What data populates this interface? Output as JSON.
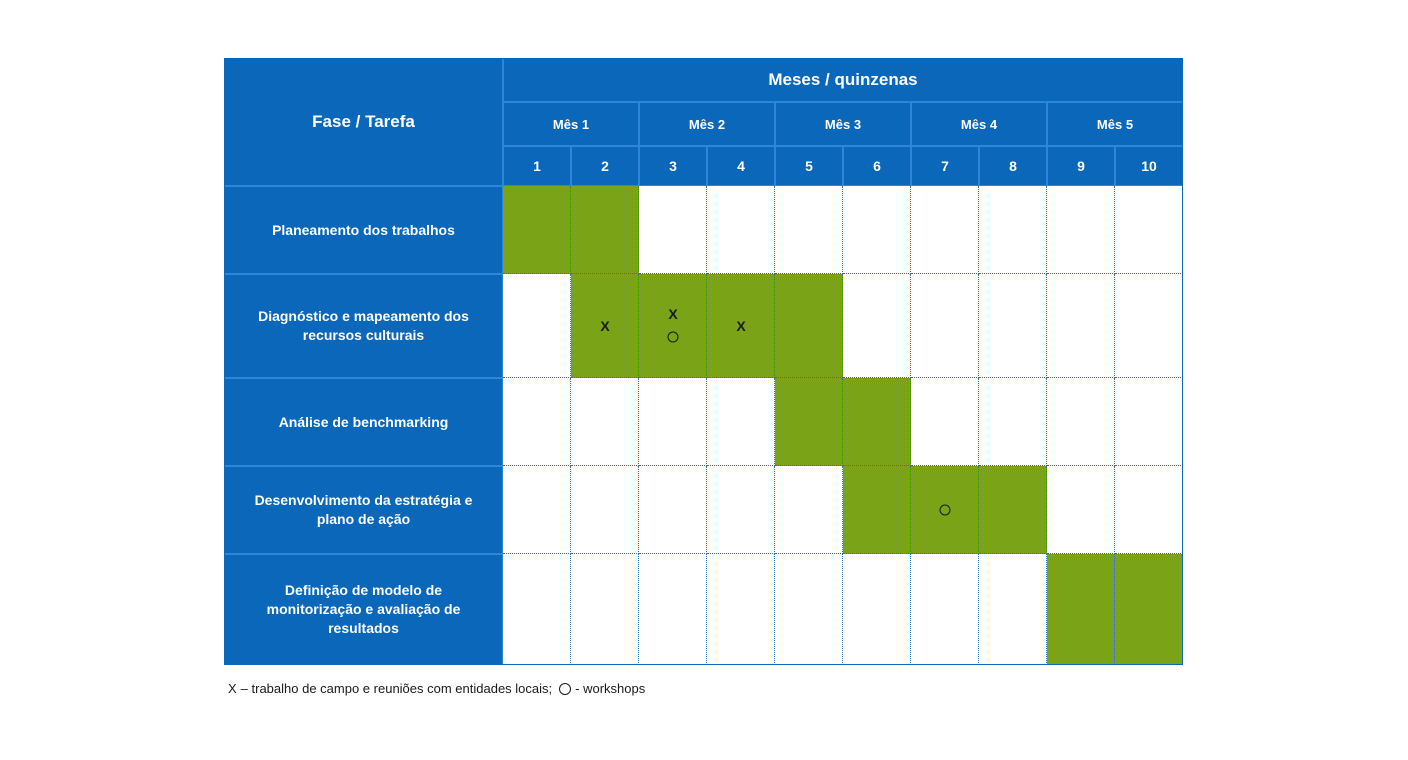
{
  "header": {
    "phase": "Fase / Tarefa",
    "period": "Meses / quinzenas",
    "months": [
      "Mês 1",
      "Mês 2",
      "Mês 3",
      "Mês 4",
      "Mês 5"
    ],
    "fortnights": [
      "1",
      "2",
      "3",
      "4",
      "5",
      "6",
      "7",
      "8",
      "9",
      "10"
    ]
  },
  "rows": [
    {
      "label": "Planeamento dos trabalhos",
      "active": [
        true,
        true,
        false,
        false,
        false,
        false,
        false,
        false,
        false,
        false
      ],
      "field_work": [],
      "workshop": []
    },
    {
      "label": "Diagnóstico e mapeamento dos recursos culturais",
      "active": [
        false,
        true,
        true,
        true,
        true,
        false,
        false,
        false,
        false,
        false
      ],
      "field_work": [
        1,
        2,
        3
      ],
      "workshop": [
        2
      ]
    },
    {
      "label": "Análise de benchmarking",
      "active": [
        false,
        false,
        false,
        false,
        true,
        true,
        false,
        false,
        false,
        false
      ],
      "field_work": [],
      "workshop": []
    },
    {
      "label": "Desenvolvimento da estratégia e plano de ação",
      "active": [
        false,
        false,
        false,
        false,
        false,
        true,
        true,
        true,
        false,
        false
      ],
      "field_work": [],
      "workshop": [
        6
      ]
    },
    {
      "label": "Definição de modelo de monitorização e avaliação de resultados",
      "active": [
        false,
        false,
        false,
        false,
        false,
        false,
        false,
        false,
        true,
        true
      ],
      "field_work": [],
      "workshop": []
    }
  ],
  "legend": {
    "symbol_x": "X",
    "text_x": "– trabalho de campo e reuniões com entidades locais;",
    "text_o": "- workshops"
  }
}
